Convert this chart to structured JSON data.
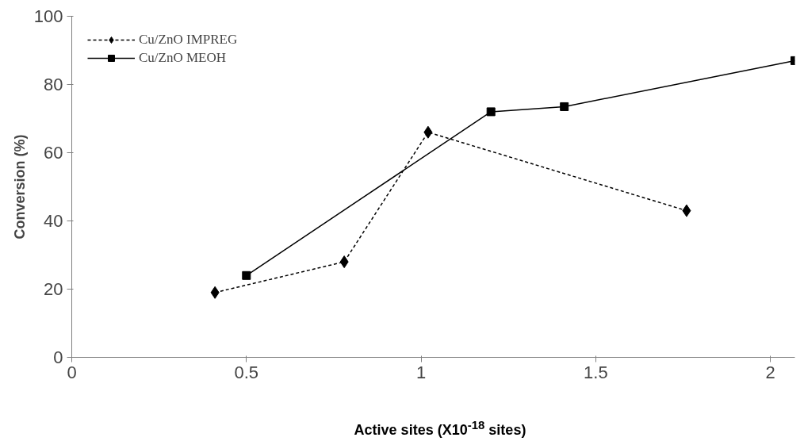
{
  "chart_data": {
    "type": "line",
    "xlabel": "Active sites (X10$^{-18}$ sites)",
    "ylabel": "Conversion (%)",
    "xlim": [
      0,
      2.07
    ],
    "xticks": [
      0,
      0.5,
      1,
      1.5,
      2
    ],
    "ylim": [
      0,
      100
    ],
    "yticks": [
      0,
      20,
      40,
      60,
      80,
      100
    ],
    "grid": false,
    "legend": "top left",
    "series": [
      {
        "name": "Cu/ZnO IMPREG",
        "color": "#000000",
        "x": [
          0.41,
          0.78,
          1.02,
          1.76
        ],
        "values": [
          19,
          28,
          66,
          43
        ],
        "marker": "diamond",
        "line_style": "dotted"
      },
      {
        "name": "Cu/ZnO MEOH",
        "color": "#000000",
        "x": [
          0.5,
          1.2,
          1.41,
          2.07
        ],
        "values": [
          24,
          72,
          73.5,
          87
        ],
        "marker": "square",
        "line_style": "solid"
      }
    ]
  }
}
